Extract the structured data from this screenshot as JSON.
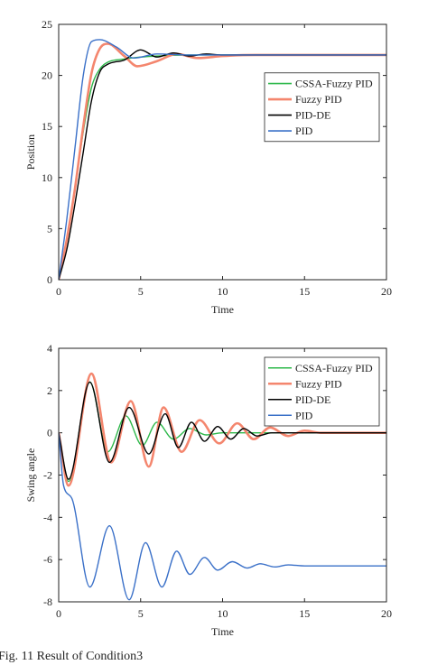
{
  "caption": "Fig. 11  Result of  Condition3",
  "chart_data": [
    {
      "type": "line",
      "xlabel": "Time",
      "ylabel": "Position",
      "xlim": [
        0,
        20
      ],
      "xticks": [
        0,
        5,
        10,
        15,
        20
      ],
      "ylim": [
        0,
        25
      ],
      "yticks": [
        0,
        5,
        10,
        15,
        20,
        25
      ],
      "grid": false,
      "legend": "right",
      "series": [
        {
          "name": "CSSA-Fuzzy PID",
          "color": "#2db84a",
          "x": [
            0,
            0.5,
            1,
            1.5,
            2,
            2.5,
            3,
            4,
            5,
            6,
            8,
            20
          ],
          "values": [
            0,
            4,
            9,
            14.5,
            18.8,
            20.6,
            21.3,
            21.6,
            21.8,
            21.9,
            22,
            22
          ]
        },
        {
          "name": "Fuzzy PID",
          "color": "#f4866e",
          "x": [
            0,
            0.5,
            1,
            1.5,
            2,
            2.5,
            3,
            4,
            4.8,
            6,
            7.2,
            8.5,
            10,
            12,
            20
          ],
          "values": [
            0,
            4,
            9,
            15,
            20.2,
            22.6,
            23.1,
            21.9,
            20.9,
            21.4,
            22.1,
            21.7,
            21.9,
            22,
            22
          ]
        },
        {
          "name": "PID-DE",
          "color": "#000000",
          "x": [
            0,
            0.5,
            1,
            1.5,
            2,
            2.5,
            3,
            4,
            5,
            6,
            7,
            8,
            9,
            10,
            20
          ],
          "values": [
            0,
            3,
            7.5,
            12.5,
            17.5,
            20.3,
            21.1,
            21.5,
            22.5,
            21.8,
            22.2,
            21.9,
            22.1,
            22,
            22
          ]
        },
        {
          "name": "PID",
          "color": "#3a70c8",
          "x": [
            0,
            0.5,
            1,
            1.5,
            2,
            2.5,
            3.5,
            4.6,
            6,
            8,
            20
          ],
          "values": [
            0,
            6,
            13,
            20,
            23.3,
            23.5,
            22.8,
            21.7,
            22.1,
            22,
            22
          ]
        }
      ]
    },
    {
      "type": "line",
      "xlabel": "Time",
      "ylabel": "Swing angle",
      "xlim": [
        0,
        20
      ],
      "xticks": [
        0,
        5,
        10,
        15,
        20
      ],
      "ylim": [
        -8,
        4
      ],
      "yticks": [
        -8,
        -6,
        -4,
        -2,
        0,
        2,
        4
      ],
      "grid": false,
      "legend": "upper right",
      "series": [
        {
          "name": "CSSA-Fuzzy PID",
          "color": "#2db84a",
          "x": [
            0,
            0.6,
            1.9,
            3,
            4.1,
            5.1,
            6,
            7,
            8,
            9,
            10,
            20
          ],
          "values": [
            0,
            -2.3,
            2.4,
            -0.9,
            0.8,
            -0.6,
            0.5,
            -0.3,
            0.2,
            -0.1,
            0,
            0
          ]
        },
        {
          "name": "Fuzzy PID",
          "color": "#f4866e",
          "x": [
            0,
            0.6,
            2,
            3.2,
            4.4,
            5.5,
            6.4,
            7.5,
            8.6,
            9.8,
            10.9,
            11.9,
            12.9,
            14,
            15,
            16,
            20
          ],
          "values": [
            0,
            -2.5,
            2.8,
            -1.4,
            1.5,
            -1.6,
            1.2,
            -0.9,
            0.6,
            -0.5,
            0.45,
            -0.3,
            0.25,
            -0.15,
            0.1,
            0,
            0
          ]
        },
        {
          "name": "PID-DE",
          "color": "#000000",
          "x": [
            0,
            0.6,
            1.9,
            3.1,
            4.3,
            5.5,
            6.5,
            7.3,
            8.1,
            8.9,
            9.7,
            10.5,
            11.3,
            12.1,
            13,
            20
          ],
          "values": [
            0,
            -2.2,
            2.4,
            -1.4,
            1.2,
            -1.0,
            0.9,
            -0.7,
            0.5,
            -0.4,
            0.3,
            -0.3,
            0.2,
            -0.15,
            0,
            0
          ]
        },
        {
          "name": "PID",
          "color": "#3a70c8",
          "x": [
            0,
            0.3,
            0.8,
            1.9,
            3.1,
            4.3,
            5.3,
            6.3,
            7.2,
            8,
            8.9,
            9.7,
            10.6,
            11.5,
            12.3,
            13.2,
            14,
            15,
            20
          ],
          "values": [
            0,
            -2.5,
            -3.1,
            -7.3,
            -4.4,
            -7.9,
            -5.2,
            -7.3,
            -5.6,
            -6.7,
            -5.9,
            -6.5,
            -6.1,
            -6.4,
            -6.2,
            -6.35,
            -6.25,
            -6.3,
            -6.3
          ]
        }
      ]
    }
  ]
}
